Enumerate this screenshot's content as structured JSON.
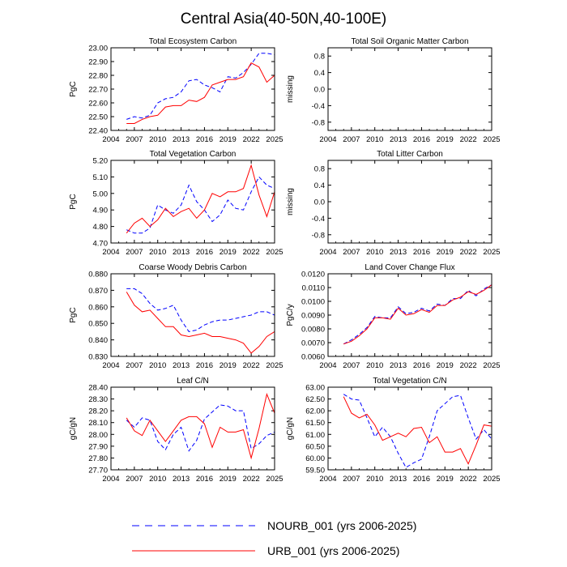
{
  "figure": {
    "title": "Central Asia(40-50N,40-100E)",
    "legend": [
      {
        "label": "NOURB_001 (yrs 2006-2025)",
        "color": "#0000ff",
        "dash": "dashed"
      },
      {
        "label": "URB_001 (yrs 2006-2025)",
        "color": "#ff0000",
        "dash": "solid"
      }
    ]
  },
  "chart_data": [
    {
      "type": "line",
      "title": "Total Ecosystem Carbon",
      "ylabel": "PgC",
      "xlim": [
        2004,
        2025
      ],
      "ylim": [
        22.4,
        23.0
      ],
      "xticks": [
        2004,
        2007,
        2010,
        2013,
        2016,
        2019,
        2022,
        2025
      ],
      "yticks": [
        22.4,
        22.5,
        22.6,
        22.7,
        22.8,
        22.9,
        23.0
      ],
      "ydecimals": 2,
      "x": [
        2006,
        2007,
        2008,
        2009,
        2010,
        2011,
        2012,
        2013,
        2014,
        2015,
        2016,
        2017,
        2018,
        2019,
        2020,
        2021,
        2022,
        2023,
        2024,
        2025
      ],
      "series": [
        {
          "name": "NOURB_001",
          "values": [
            22.48,
            22.5,
            22.49,
            22.51,
            22.6,
            22.63,
            22.64,
            22.68,
            22.76,
            22.77,
            22.73,
            22.71,
            22.68,
            22.79,
            22.78,
            22.82,
            22.88,
            22.96,
            22.96,
            22.95
          ]
        },
        {
          "name": "URB_001",
          "values": [
            22.45,
            22.45,
            22.48,
            22.5,
            22.51,
            22.57,
            22.58,
            22.58,
            22.62,
            22.61,
            22.64,
            22.73,
            22.75,
            22.77,
            22.77,
            22.79,
            22.89,
            22.86,
            22.75,
            22.8
          ]
        }
      ]
    },
    {
      "type": "line",
      "title": "Total Soil Organic Matter Carbon",
      "ylabel": "missing",
      "xlim": [
        2004,
        2025
      ],
      "ylim": [
        -1.0,
        1.0
      ],
      "xticks": [
        2004,
        2007,
        2010,
        2013,
        2016,
        2019,
        2022,
        2025
      ],
      "yticks": [
        -0.8,
        -0.4,
        0.0,
        0.4,
        0.8
      ],
      "ydecimals": 1,
      "x": [],
      "series": []
    },
    {
      "type": "line",
      "title": "Total Vegetation Carbon",
      "ylabel": "PgC",
      "xlim": [
        2004,
        2025
      ],
      "ylim": [
        4.7,
        5.2
      ],
      "xticks": [
        2004,
        2007,
        2010,
        2013,
        2016,
        2019,
        2022,
        2025
      ],
      "yticks": [
        4.7,
        4.8,
        4.9,
        5.0,
        5.1,
        5.2
      ],
      "ydecimals": 2,
      "x": [
        2006,
        2007,
        2008,
        2009,
        2010,
        2011,
        2012,
        2013,
        2014,
        2015,
        2016,
        2017,
        2018,
        2019,
        2020,
        2021,
        2022,
        2023,
        2024,
        2025
      ],
      "series": [
        {
          "name": "NOURB_001",
          "values": [
            4.78,
            4.76,
            4.76,
            4.79,
            4.93,
            4.9,
            4.88,
            4.93,
            5.05,
            4.95,
            4.9,
            4.83,
            4.87,
            4.96,
            4.91,
            4.9,
            5.01,
            5.1,
            5.05,
            5.03
          ]
        },
        {
          "name": "URB_001",
          "values": [
            4.76,
            4.82,
            4.85,
            4.8,
            4.84,
            4.91,
            4.86,
            4.89,
            4.91,
            4.85,
            4.9,
            5.0,
            4.98,
            5.01,
            5.01,
            5.03,
            5.17,
            4.99,
            4.86,
            5.01
          ]
        }
      ]
    },
    {
      "type": "line",
      "title": "Total Litter Carbon",
      "ylabel": "missing",
      "xlim": [
        2004,
        2025
      ],
      "ylim": [
        -1.0,
        1.0
      ],
      "xticks": [
        2004,
        2007,
        2010,
        2013,
        2016,
        2019,
        2022,
        2025
      ],
      "yticks": [
        -0.8,
        -0.4,
        0.0,
        0.4,
        0.8
      ],
      "ydecimals": 1,
      "x": [],
      "series": []
    },
    {
      "type": "line",
      "title": "Coarse Woody Debris Carbon",
      "ylabel": "PgC",
      "xlim": [
        2004,
        2025
      ],
      "ylim": [
        0.83,
        0.88
      ],
      "xticks": [
        2004,
        2007,
        2010,
        2013,
        2016,
        2019,
        2022,
        2025
      ],
      "yticks": [
        0.83,
        0.84,
        0.85,
        0.86,
        0.87,
        0.88
      ],
      "ydecimals": 3,
      "x": [
        2006,
        2007,
        2008,
        2009,
        2010,
        2011,
        2012,
        2013,
        2014,
        2015,
        2016,
        2017,
        2018,
        2019,
        2020,
        2021,
        2022,
        2023,
        2024,
        2025
      ],
      "series": [
        {
          "name": "NOURB_001",
          "values": [
            0.871,
            0.871,
            0.868,
            0.862,
            0.858,
            0.859,
            0.861,
            0.852,
            0.845,
            0.846,
            0.849,
            0.851,
            0.852,
            0.852,
            0.853,
            0.854,
            0.855,
            0.857,
            0.857,
            0.855
          ]
        },
        {
          "name": "URB_001",
          "values": [
            0.869,
            0.861,
            0.857,
            0.858,
            0.853,
            0.848,
            0.848,
            0.843,
            0.842,
            0.843,
            0.844,
            0.842,
            0.842,
            0.841,
            0.84,
            0.838,
            0.832,
            0.836,
            0.842,
            0.845
          ]
        }
      ]
    },
    {
      "type": "line",
      "title": "Land Cover Change Flux",
      "ylabel": "PgC/y",
      "xlim": [
        2004,
        2025
      ],
      "ylim": [
        0.006,
        0.012
      ],
      "xticks": [
        2004,
        2007,
        2010,
        2013,
        2016,
        2019,
        2022,
        2025
      ],
      "yticks": [
        0.006,
        0.007,
        0.008,
        0.009,
        0.01,
        0.011,
        0.012
      ],
      "ydecimals": 4,
      "x": [
        2006,
        2007,
        2008,
        2009,
        2010,
        2011,
        2012,
        2013,
        2014,
        2015,
        2016,
        2017,
        2018,
        2019,
        2020,
        2021,
        2022,
        2023,
        2024,
        2025
      ],
      "series": [
        {
          "name": "NOURB_001",
          "values": [
            0.0069,
            0.0072,
            0.0076,
            0.0081,
            0.0089,
            0.0088,
            0.0088,
            0.0096,
            0.0091,
            0.0092,
            0.0095,
            0.0093,
            0.0098,
            0.0097,
            0.0102,
            0.0102,
            0.0108,
            0.0104,
            0.0109,
            0.0112
          ]
        },
        {
          "name": "URB_001",
          "values": [
            0.0069,
            0.0071,
            0.0075,
            0.008,
            0.0088,
            0.0088,
            0.0087,
            0.0095,
            0.009,
            0.0091,
            0.0094,
            0.0092,
            0.0097,
            0.0097,
            0.0101,
            0.0103,
            0.0107,
            0.0105,
            0.0108,
            0.0112
          ]
        }
      ]
    },
    {
      "type": "line",
      "title": "Leaf C/N",
      "ylabel": "gC/gN",
      "xlim": [
        2004,
        2025
      ],
      "ylim": [
        27.7,
        28.4
      ],
      "xticks": [
        2004,
        2007,
        2010,
        2013,
        2016,
        2019,
        2022,
        2025
      ],
      "yticks": [
        27.7,
        27.8,
        27.9,
        28.0,
        28.1,
        28.2,
        28.3,
        28.4
      ],
      "ydecimals": 2,
      "x": [
        2006,
        2007,
        2008,
        2009,
        2010,
        2011,
        2012,
        2013,
        2014,
        2015,
        2016,
        2017,
        2018,
        2019,
        2020,
        2021,
        2022,
        2023,
        2024,
        2025
      ],
      "series": [
        {
          "name": "NOURB_001",
          "values": [
            28.12,
            28.06,
            28.14,
            28.12,
            27.94,
            27.87,
            28.0,
            28.06,
            27.86,
            27.95,
            28.13,
            28.19,
            28.25,
            28.24,
            28.2,
            28.2,
            27.88,
            27.92,
            27.99,
            28.02
          ]
        },
        {
          "name": "URB_001",
          "values": [
            28.14,
            28.03,
            27.99,
            28.12,
            28.03,
            27.94,
            28.03,
            28.12,
            28.15,
            28.15,
            28.09,
            27.89,
            28.06,
            28.02,
            28.02,
            28.04,
            27.8,
            28.05,
            28.34,
            28.18
          ]
        }
      ]
    },
    {
      "type": "line",
      "title": "Total Vegetation C/N",
      "ylabel": "gC/gN",
      "xlim": [
        2004,
        2025
      ],
      "ylim": [
        59.5,
        63.0
      ],
      "xticks": [
        2004,
        2007,
        2010,
        2013,
        2016,
        2019,
        2022,
        2025
      ],
      "yticks": [
        59.5,
        60.0,
        60.5,
        61.0,
        61.5,
        62.0,
        62.5,
        63.0
      ],
      "ydecimals": 2,
      "x": [
        2006,
        2007,
        2008,
        2009,
        2010,
        2011,
        2012,
        2013,
        2014,
        2015,
        2016,
        2017,
        2018,
        2019,
        2020,
        2021,
        2022,
        2023,
        2024,
        2025
      ],
      "series": [
        {
          "name": "NOURB_001",
          "values": [
            62.7,
            62.5,
            62.45,
            61.7,
            60.9,
            61.3,
            60.9,
            60.2,
            59.6,
            59.8,
            59.95,
            60.9,
            62.0,
            62.3,
            62.6,
            62.65,
            61.7,
            60.8,
            61.2,
            60.8
          ]
        },
        {
          "name": "URB_001",
          "values": [
            62.6,
            61.9,
            61.7,
            61.85,
            61.4,
            60.75,
            60.9,
            61.05,
            60.9,
            61.25,
            61.3,
            60.65,
            60.9,
            60.25,
            60.25,
            60.4,
            59.75,
            60.55,
            61.4,
            61.35
          ]
        }
      ]
    }
  ]
}
